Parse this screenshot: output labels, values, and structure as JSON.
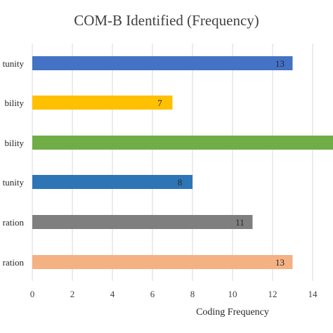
{
  "chart_data": {
    "type": "bar",
    "orientation": "horizontal",
    "title": "COM-B Identified (Frequency)",
    "xlabel": "Coding Frequency",
    "ylabel": "",
    "xlim": [
      0,
      16
    ],
    "xticks": [
      0,
      2,
      4,
      6,
      8,
      10,
      12,
      14
    ],
    "grid": "vertical",
    "legend": "none",
    "categories": [
      "tunity",
      "bility",
      "bility",
      "tunity",
      "ration",
      "ration"
    ],
    "values": [
      13,
      7,
      15.5,
      8,
      11,
      13
    ],
    "data_labels": [
      "13",
      "7",
      "",
      "8",
      "11",
      "13"
    ],
    "colors": [
      "#4472C4",
      "#FFC000",
      "#70AD47",
      "#2E75B6",
      "#7F7F7F",
      "#F4B183"
    ]
  }
}
